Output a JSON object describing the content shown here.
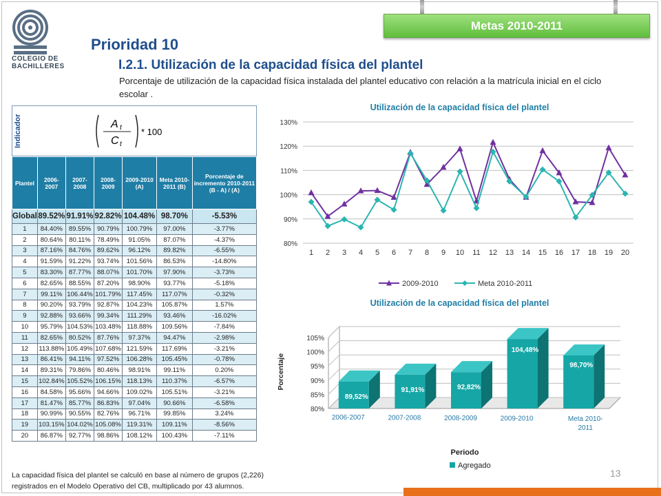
{
  "metas_label": "Metas 2010-2011",
  "logo": {
    "line1": "COLEGIO DE",
    "line2": "BACHILLERES"
  },
  "prioridad_title": "Prioridad 10",
  "subtitle": "I.2.1. Utilización de la capacidad física del plantel",
  "description": "Porcentaje de utilización de la capacidad física instalada del plantel educativo con relación a la matrícula inicial en el ciclo escolar .",
  "indicador_label": "Indicador",
  "formula": {
    "numerator": "A",
    "numerator_sub": "t",
    "denominator": "C",
    "denominator_sub": "t",
    "multiplier": "* 100"
  },
  "table": {
    "headers": [
      "Plantel",
      "2006-2007",
      "2007-2008",
      "2008-2009",
      "2009-2010 (A)",
      "Meta 2010-2011 (B)",
      "Porcentaje de incremento 2010-2011 (B - A) / (A)"
    ],
    "global": [
      "Global",
      "89.52%",
      "91.91%",
      "92.82%",
      "104.48%",
      "98.70%",
      "-5.53%"
    ],
    "rows": [
      [
        "1",
        "84.40%",
        "89.55%",
        "90.79%",
        "100.79%",
        "97.00%",
        "-3.77%"
      ],
      [
        "2",
        "80.64%",
        "80.11%",
        "78.49%",
        "91.05%",
        "87.07%",
        "-4.37%"
      ],
      [
        "3",
        "87.16%",
        "84.76%",
        "89.62%",
        "96.12%",
        "89.82%",
        "-6.55%"
      ],
      [
        "4",
        "91.59%",
        "91.22%",
        "93.74%",
        "101.56%",
        "86.53%",
        "-14.80%"
      ],
      [
        "5",
        "83.30%",
        "87.77%",
        "88.07%",
        "101.70%",
        "97.90%",
        "-3.73%"
      ],
      [
        "6",
        "82.65%",
        "88.55%",
        "87.20%",
        "98.90%",
        "93.77%",
        "-5.18%"
      ],
      [
        "7",
        "99.11%",
        "106.44%",
        "101.79%",
        "117.45%",
        "117.07%",
        "-0.32%"
      ],
      [
        "8",
        "90.20%",
        "93.79%",
        "92.87%",
        "104.23%",
        "105.87%",
        "1.57%"
      ],
      [
        "9",
        "92.88%",
        "93.66%",
        "99.34%",
        "111.29%",
        "93.46%",
        "-16.02%"
      ],
      [
        "10",
        "95.79%",
        "104.53%",
        "103.48%",
        "118.88%",
        "109.56%",
        "-7.84%"
      ],
      [
        "11",
        "82.65%",
        "80.52%",
        "87.76%",
        "97.37%",
        "94.47%",
        "-2.98%"
      ],
      [
        "12",
        "113.88%",
        "105.49%",
        "107.68%",
        "121.59%",
        "117.69%",
        "-3.21%"
      ],
      [
        "13",
        "86.41%",
        "94.11%",
        "97.52%",
        "106.28%",
        "105.45%",
        "-0.78%"
      ],
      [
        "14",
        "89.31%",
        "79.86%",
        "80.46%",
        "98.91%",
        "99.11%",
        "0.20%"
      ],
      [
        "15",
        "102.84%",
        "105.52%",
        "106.15%",
        "118.13%",
        "110.37%",
        "-6.57%"
      ],
      [
        "16",
        "84.58%",
        "95.66%",
        "94.66%",
        "109.02%",
        "105.51%",
        "-3.21%"
      ],
      [
        "17",
        "81.47%",
        "85.77%",
        "86.83%",
        "97.04%",
        "90.66%",
        "-6.58%"
      ],
      [
        "18",
        "90.99%",
        "90.55%",
        "82.76%",
        "96.71%",
        "99.85%",
        "3.24%"
      ],
      [
        "19",
        "103.15%",
        "104.02%",
        "105.08%",
        "119.31%",
        "109.11%",
        "-8.56%"
      ],
      [
        "20",
        "86.87%",
        "92.77%",
        "98.86%",
        "108.12%",
        "100.43%",
        "-7.11%"
      ]
    ]
  },
  "footnote": "La capacidad física del plantel se calculó en base al número de grupos (2,226) registrados en el Modelo Operativo del CB, multiplicado por 43 alumnos.",
  "page_number": "13",
  "colors": {
    "series_2009": "#7030a0",
    "series_meta": "#2bb5b0",
    "bar": "#17a6a6",
    "title_blue": "#1f7ea6",
    "orange": "#e8701a"
  },
  "chart_data": [
    {
      "type": "line",
      "title": "Utilización de la capacidad física del plantel",
      "x": [
        1,
        2,
        3,
        4,
        5,
        6,
        7,
        8,
        9,
        10,
        11,
        12,
        13,
        14,
        15,
        16,
        17,
        18,
        19,
        20
      ],
      "series": [
        {
          "name": "2009-2010",
          "values": [
            100.79,
            91.05,
            96.12,
            101.56,
            101.7,
            98.9,
            117.45,
            104.23,
            111.29,
            118.88,
            97.37,
            121.59,
            106.28,
            98.91,
            118.13,
            109.02,
            97.04,
            96.71,
            119.31,
            108.12
          ]
        },
        {
          "name": "Meta 2010-2011",
          "values": [
            97.0,
            87.07,
            89.82,
            86.53,
            97.9,
            93.77,
            117.07,
            105.87,
            93.46,
            109.56,
            94.47,
            117.69,
            105.45,
            99.11,
            110.37,
            105.51,
            90.66,
            99.85,
            109.11,
            100.43
          ]
        }
      ],
      "yticks": [
        "80%",
        "90%",
        "100%",
        "110%",
        "120%",
        "130%"
      ],
      "ylim": [
        80,
        130
      ],
      "legend": "bottom",
      "grid": true
    },
    {
      "type": "bar",
      "title": "Utilización de la capacidad física del plantel",
      "categories": [
        "2006-2007",
        "2007-2008",
        "2008-2009",
        "2009-2010",
        "Meta 2010-2011"
      ],
      "values": [
        89.52,
        91.91,
        92.82,
        104.48,
        98.7
      ],
      "data_labels": [
        "89,52%",
        "91,91%",
        "92,82%",
        "104,48%",
        "98,70%"
      ],
      "yticks": [
        "80%",
        "85%",
        "90%",
        "95%",
        "100%",
        "105%"
      ],
      "ylim": [
        80,
        105
      ],
      "ylabel": "Porcentaje",
      "xlabel": "Periodo",
      "series_name": "Agregado",
      "legend": "bottom",
      "grid": true
    }
  ]
}
